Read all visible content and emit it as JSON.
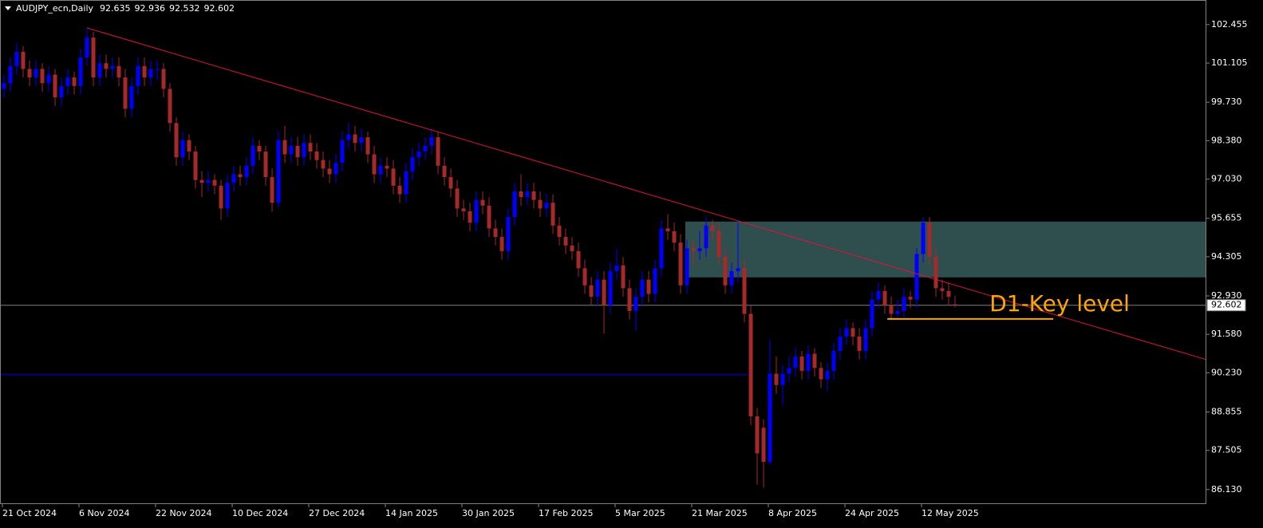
{
  "chart_data": {
    "type": "candlestick",
    "title": "AUDJPY_ecn,Daily",
    "categories": [
      "21 Oct 2024",
      null,
      null,
      null,
      null,
      null,
      null,
      null,
      null,
      null,
      null,
      null,
      "6 Nov 2024",
      null,
      null,
      null,
      null,
      null,
      null,
      null,
      null,
      null,
      null,
      null,
      "22 Nov 2024",
      null,
      null,
      null,
      null,
      null,
      null,
      null,
      null,
      null,
      null,
      null,
      "10 Dec 2024",
      null,
      null,
      null,
      null,
      null,
      null,
      null,
      null,
      null,
      null,
      null,
      "27 Dec 2024",
      null,
      null,
      null,
      null,
      null,
      null,
      null,
      null,
      null,
      null,
      null,
      "14 Jan 2025",
      null,
      null,
      null,
      null,
      null,
      null,
      null,
      null,
      null,
      null,
      null,
      "30 Jan 2025",
      null,
      null,
      null,
      null,
      null,
      null,
      null,
      null,
      null,
      null,
      null,
      "17 Feb 2025",
      null,
      null,
      null,
      null,
      null,
      null,
      null,
      null,
      null,
      null,
      null,
      "5 Mar 2025",
      null,
      null,
      null,
      null,
      null,
      null,
      null,
      null,
      null,
      null,
      null,
      "21 Mar 2025",
      null,
      null,
      null,
      null,
      null,
      null,
      null,
      null,
      null,
      null,
      null,
      "8 Apr 2025",
      null,
      null,
      null,
      null,
      null,
      null,
      null,
      null,
      null,
      null,
      null,
      "24 Apr 2025",
      null,
      null,
      null,
      null,
      null,
      null,
      null,
      null,
      null,
      null,
      null,
      "12 May 2025",
      null,
      null,
      null,
      null,
      null
    ],
    "candles": [
      [
        100.2,
        100.7,
        99.9,
        100.4
      ],
      [
        100.4,
        101.3,
        100.1,
        101.0
      ],
      [
        101.0,
        101.8,
        100.7,
        101.5
      ],
      [
        101.5,
        101.7,
        100.6,
        100.9
      ],
      [
        100.9,
        101.2,
        100.3,
        100.6
      ],
      [
        100.6,
        101.2,
        100.3,
        100.9
      ],
      [
        100.9,
        101.1,
        100.1,
        100.4
      ],
      [
        100.4,
        101.0,
        100.1,
        100.7
      ],
      [
        100.7,
        100.9,
        99.6,
        99.9
      ],
      [
        99.9,
        100.6,
        99.6,
        100.3
      ],
      [
        100.3,
        100.9,
        100.0,
        100.6
      ],
      [
        100.6,
        100.8,
        100.0,
        100.3
      ],
      [
        100.3,
        101.6,
        100.0,
        101.3
      ],
      [
        101.3,
        102.34,
        101.0,
        102.0
      ],
      [
        102.0,
        102.2,
        100.3,
        100.6
      ],
      [
        100.6,
        101.4,
        100.3,
        101.1
      ],
      [
        101.1,
        101.4,
        100.6,
        100.9
      ],
      [
        100.9,
        101.3,
        100.6,
        101.0
      ],
      [
        101.0,
        101.3,
        100.3,
        100.6
      ],
      [
        100.6,
        100.9,
        99.2,
        99.5
      ],
      [
        99.5,
        100.6,
        99.2,
        100.3
      ],
      [
        100.3,
        101.3,
        100.0,
        101.0
      ],
      [
        101.0,
        101.3,
        100.3,
        100.6
      ],
      [
        100.6,
        101.2,
        100.3,
        100.9
      ],
      [
        100.9,
        101.2,
        100.5,
        100.9
      ],
      [
        100.9,
        101.1,
        99.9,
        100.2
      ],
      [
        100.2,
        100.4,
        98.7,
        99.0
      ],
      [
        99.0,
        99.2,
        97.5,
        97.8
      ],
      [
        97.8,
        98.7,
        97.5,
        98.4
      ],
      [
        98.4,
        98.6,
        97.7,
        98.0
      ],
      [
        98.0,
        98.2,
        96.7,
        97.0
      ],
      [
        97.0,
        97.3,
        96.4,
        96.9
      ],
      [
        96.9,
        97.3,
        96.6,
        97.0
      ],
      [
        97.0,
        97.2,
        96.5,
        96.8
      ],
      [
        96.8,
        97.0,
        95.6,
        96.0
      ],
      [
        96.0,
        97.2,
        95.7,
        96.9
      ],
      [
        96.9,
        97.5,
        96.6,
        97.2
      ],
      [
        97.2,
        97.5,
        96.8,
        97.1
      ],
      [
        97.1,
        97.8,
        96.8,
        97.5
      ],
      [
        97.5,
        98.5,
        97.2,
        98.2
      ],
      [
        98.2,
        98.4,
        97.7,
        98.0
      ],
      [
        98.0,
        98.2,
        96.8,
        97.1
      ],
      [
        97.1,
        97.4,
        95.9,
        96.2
      ],
      [
        96.2,
        98.7,
        96.0,
        98.4
      ],
      [
        98.4,
        98.9,
        97.6,
        97.9
      ],
      [
        97.9,
        98.5,
        97.6,
        98.2
      ],
      [
        98.2,
        98.5,
        97.5,
        97.8
      ],
      [
        97.8,
        98.6,
        97.5,
        98.3
      ],
      [
        98.3,
        98.6,
        97.7,
        98.0
      ],
      [
        98.0,
        98.3,
        97.4,
        97.7
      ],
      [
        97.7,
        98.0,
        97.1,
        97.4
      ],
      [
        97.4,
        97.7,
        96.9,
        97.2
      ],
      [
        97.2,
        97.9,
        96.9,
        97.6
      ],
      [
        97.6,
        98.7,
        97.3,
        98.4
      ],
      [
        98.4,
        99.0,
        98.1,
        98.6
      ],
      [
        98.6,
        98.9,
        98.0,
        98.3
      ],
      [
        98.3,
        98.8,
        98.0,
        98.5
      ],
      [
        98.5,
        98.7,
        97.6,
        97.9
      ],
      [
        97.9,
        98.2,
        96.9,
        97.2
      ],
      [
        97.2,
        97.8,
        96.9,
        97.5
      ],
      [
        97.5,
        97.8,
        97.1,
        97.4
      ],
      [
        97.4,
        97.7,
        96.5,
        96.8
      ],
      [
        96.8,
        97.1,
        96.2,
        96.5
      ],
      [
        96.5,
        97.6,
        96.2,
        97.3
      ],
      [
        97.3,
        98.1,
        97.0,
        97.8
      ],
      [
        97.8,
        98.3,
        97.5,
        98.0
      ],
      [
        98.0,
        98.5,
        97.7,
        98.2
      ],
      [
        98.2,
        98.8,
        97.9,
        98.5
      ],
      [
        98.5,
        98.7,
        97.2,
        97.5
      ],
      [
        97.5,
        97.8,
        96.8,
        97.1
      ],
      [
        97.1,
        97.4,
        96.4,
        96.7
      ],
      [
        96.7,
        97.0,
        95.7,
        96.0
      ],
      [
        96.0,
        96.3,
        95.6,
        95.9
      ],
      [
        95.9,
        96.2,
        95.2,
        95.5
      ],
      [
        95.5,
        96.6,
        95.2,
        96.3
      ],
      [
        96.3,
        96.6,
        95.8,
        96.1
      ],
      [
        96.1,
        96.4,
        95.0,
        95.3
      ],
      [
        95.3,
        95.6,
        94.7,
        95.0
      ],
      [
        95.0,
        95.3,
        94.2,
        94.5
      ],
      [
        94.5,
        96.0,
        94.2,
        95.7
      ],
      [
        95.7,
        96.9,
        95.4,
        96.6
      ],
      [
        96.6,
        97.2,
        96.1,
        96.4
      ],
      [
        96.4,
        96.9,
        96.1,
        96.6
      ],
      [
        96.6,
        96.9,
        96.0,
        96.3
      ],
      [
        96.3,
        96.6,
        95.7,
        96.0
      ],
      [
        96.0,
        96.5,
        95.7,
        96.2
      ],
      [
        96.2,
        96.5,
        95.1,
        95.4
      ],
      [
        95.4,
        95.7,
        94.7,
        95.0
      ],
      [
        95.0,
        95.3,
        94.4,
        94.7
      ],
      [
        94.7,
        95.0,
        94.2,
        94.5
      ],
      [
        94.5,
        94.8,
        93.6,
        93.9
      ],
      [
        93.9,
        94.2,
        93.0,
        93.3
      ],
      [
        93.3,
        93.6,
        92.6,
        92.9
      ],
      [
        92.9,
        93.8,
        92.6,
        93.5
      ],
      [
        93.5,
        93.8,
        91.6,
        92.6
      ],
      [
        92.6,
        94.1,
        92.3,
        93.8
      ],
      [
        93.8,
        94.6,
        93.5,
        94.0
      ],
      [
        94.0,
        94.3,
        92.9,
        93.2
      ],
      [
        93.2,
        93.5,
        92.1,
        92.4
      ],
      [
        92.4,
        93.2,
        91.7,
        92.9
      ],
      [
        92.9,
        93.8,
        92.6,
        93.5
      ],
      [
        93.5,
        93.8,
        92.7,
        93.0
      ],
      [
        93.0,
        94.2,
        92.7,
        93.9
      ],
      [
        93.9,
        95.6,
        93.6,
        95.3
      ],
      [
        95.3,
        95.8,
        94.9,
        95.2
      ],
      [
        95.2,
        95.5,
        94.5,
        94.8
      ],
      [
        94.8,
        95.1,
        93.0,
        93.3
      ],
      [
        93.3,
        94.9,
        93.0,
        94.6
      ],
      [
        94.6,
        94.9,
        94.0,
        94.5
      ],
      [
        94.5,
        95.2,
        94.2,
        94.6
      ],
      [
        94.6,
        95.7,
        94.3,
        95.4
      ],
      [
        95.4,
        95.6,
        94.9,
        95.2
      ],
      [
        95.2,
        95.5,
        94.0,
        94.3
      ],
      [
        94.3,
        94.6,
        93.0,
        93.3
      ],
      [
        93.3,
        94.1,
        93.0,
        93.8
      ],
      [
        93.8,
        95.5,
        93.4,
        93.9
      ],
      [
        93.9,
        94.2,
        92.0,
        92.3
      ],
      [
        92.3,
        92.6,
        88.4,
        88.7
      ],
      [
        88.7,
        89.0,
        86.3,
        87.4
      ],
      [
        88.3,
        88.6,
        86.2,
        87.1
      ],
      [
        87.1,
        91.4,
        87.0,
        90.2
      ],
      [
        90.2,
        90.8,
        89.5,
        89.8
      ],
      [
        89.8,
        90.5,
        89.1,
        90.2
      ],
      [
        90.2,
        90.8,
        89.9,
        90.4
      ],
      [
        90.4,
        91.1,
        90.1,
        90.8
      ],
      [
        90.8,
        91.0,
        90.0,
        90.3
      ],
      [
        90.3,
        91.2,
        90.0,
        90.9
      ],
      [
        90.9,
        91.1,
        90.1,
        90.4
      ],
      [
        90.4,
        90.6,
        89.7,
        90.0
      ],
      [
        90.0,
        90.6,
        89.6,
        90.3
      ],
      [
        90.3,
        91.3,
        90.0,
        91.0
      ],
      [
        91.0,
        91.8,
        90.7,
        91.5
      ],
      [
        91.5,
        92.1,
        91.2,
        91.8
      ],
      [
        91.8,
        92.0,
        91.2,
        91.5
      ],
      [
        91.5,
        91.8,
        90.7,
        91.0
      ],
      [
        91.0,
        92.1,
        90.7,
        91.8
      ],
      [
        91.8,
        93.1,
        91.5,
        92.8
      ],
      [
        92.8,
        93.4,
        92.5,
        93.1
      ],
      [
        93.1,
        93.3,
        92.3,
        92.6
      ],
      [
        92.6,
        92.9,
        92.1,
        92.3
      ],
      [
        92.3,
        92.8,
        92.1,
        92.4
      ],
      [
        92.4,
        93.2,
        92.1,
        92.9
      ],
      [
        92.9,
        93.1,
        92.5,
        92.8
      ],
      [
        92.8,
        94.6,
        92.5,
        94.4
      ],
      [
        94.4,
        95.7,
        94.1,
        95.5
      ],
      [
        95.5,
        95.7,
        94.0,
        94.3
      ],
      [
        94.3,
        94.6,
        92.9,
        93.2
      ],
      [
        93.2,
        93.5,
        92.8,
        93.1
      ],
      [
        93.1,
        93.4,
        92.6,
        92.9
      ],
      [
        92.635,
        92.936,
        92.532,
        92.602
      ]
    ],
    "up_color": "#0000ff",
    "down_color": "#a52a2a",
    "ylim": [
      85.62,
      103.32
    ],
    "yticks": [
      102.455,
      101.105,
      {
        "value": 99.73,
        "label": "99.730"
      },
      {
        "value": 98.38,
        "label": "98.380"
      },
      {
        "value": 97.03,
        "label": "97.030"
      },
      95.655,
      94.305,
      {
        "value": 92.93,
        "label": "92.930"
      },
      {
        "value": 91.58,
        "label": "91.580"
      },
      {
        "value": 90.23,
        "label": "90.230"
      },
      88.855,
      87.505,
      {
        "value": 86.13,
        "label": "86.130"
      }
    ],
    "price_line_color": "#808080",
    "zone": {
      "x": [
        106.75,
        188.4
      ],
      "y": [
        93.58,
        95.54
      ],
      "color": "#2f4f4f"
    },
    "trendline": {
      "x": [
        13,
        188.4
      ],
      "y": [
        102.34,
        90.69
      ],
      "color": "#e0103a"
    },
    "blue_line": {
      "x": [
        -0.6,
        116.6
      ],
      "y": 90.16,
      "color": "#0000ff"
    },
    "key_level": {
      "x": [
        138.4,
        164.4
      ],
      "y": 92.12,
      "color": "#ffa500",
      "label": "D1-Key level"
    }
  }
}
